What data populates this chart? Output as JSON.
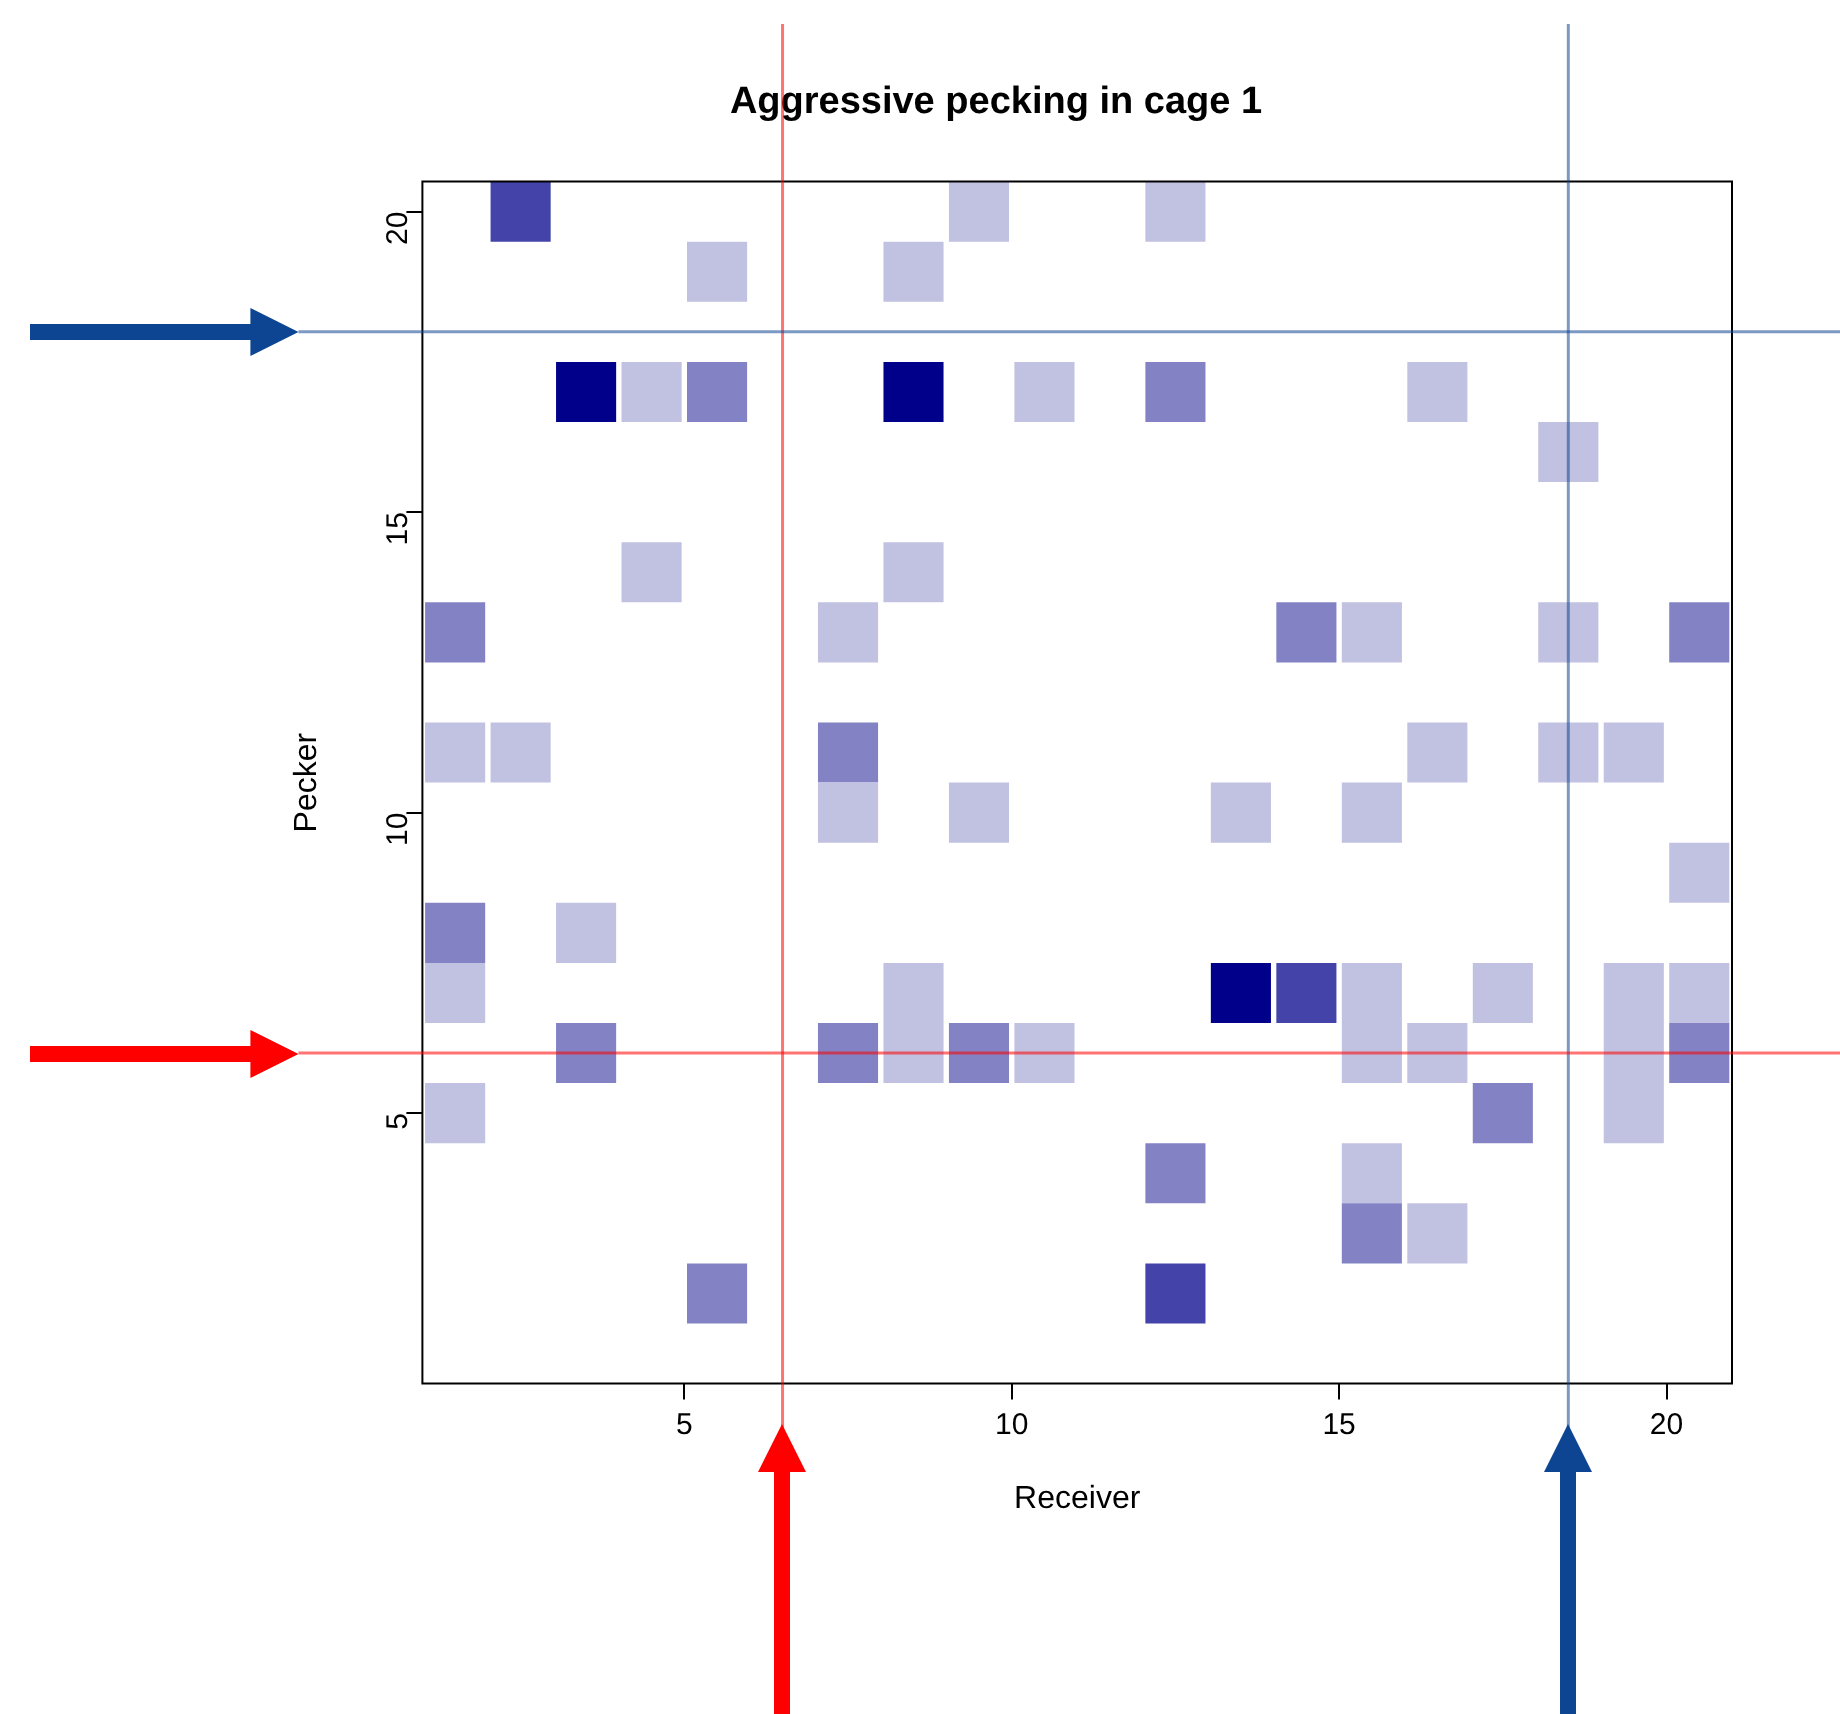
{
  "chart_data": {
    "type": "scatter",
    "title": "Aggressive pecking in cage 1",
    "xlabel": "Receiver",
    "ylabel": "Pecker",
    "marker": "square",
    "xlim": [
      1,
      21
    ],
    "xticks": [
      5,
      10,
      15,
      20
    ],
    "ylim": [
      0.5,
      20.5
    ],
    "yticks": [
      5,
      10,
      15,
      20
    ],
    "series": [
      {
        "x": [
          2.5,
          9.5,
          12.5,
          5.5,
          8.5,
          3.5,
          4.5,
          5.5,
          8.5,
          10.5,
          12.5,
          16.5,
          18.5,
          4.5,
          8.5,
          1.5,
          7.5,
          14.5,
          15.5,
          18.5,
          20.5,
          1.5,
          2.5,
          7.5,
          16.5,
          18.5,
          19.5,
          7.5,
          9.5,
          13.5,
          15.5,
          20.5,
          1.5,
          3.5,
          1.5,
          8.5,
          13.5,
          14.5,
          15.5,
          17.5,
          19.5,
          20.5,
          3.5,
          7.5,
          8.5,
          9.5,
          10.5,
          15.5,
          16.5,
          19.5,
          20.5,
          1.5,
          17.5,
          19.5,
          12.5,
          15.5,
          15.5,
          16.5,
          5.5,
          12.5
        ],
        "values": [
          20,
          20,
          20,
          19,
          19,
          17,
          17,
          17,
          17,
          17,
          17,
          17,
          16,
          14,
          14,
          13,
          13,
          13,
          13,
          13,
          13,
          11,
          11,
          11,
          11,
          11,
          11,
          10,
          10,
          10,
          10,
          9,
          8,
          8,
          7,
          7,
          7,
          7,
          7,
          7,
          7,
          7,
          6,
          6,
          6,
          6,
          6,
          6,
          6,
          6,
          6,
          5,
          5,
          5,
          4,
          4,
          3,
          3,
          2,
          2
        ],
        "colors": [
          "#4343a9",
          "#c1c1e1",
          "#c1c1e1",
          "#c1c1e1",
          "#c1c1e1",
          "#00008b",
          "#c1c1e1",
          "#8282c4",
          "#00008b",
          "#c1c1e1",
          "#8282c4",
          "#c1c1e1",
          "#c1c1e1",
          "#c1c1e1",
          "#c1c1e1",
          "#8282c4",
          "#c1c1e1",
          "#8282c4",
          "#c1c1e1",
          "#c1c1e1",
          "#8282c4",
          "#c1c1e1",
          "#c1c1e1",
          "#8282c4",
          "#c1c1e1",
          "#c1c1e1",
          "#c1c1e1",
          "#c1c1e1",
          "#c1c1e1",
          "#c1c1e1",
          "#c1c1e1",
          "#c1c1e1",
          "#8282c4",
          "#c1c1e1",
          "#c1c1e1",
          "#c1c1e1",
          "#00008b",
          "#4343a9",
          "#c1c1e1",
          "#c1c1e1",
          "#c1c1e1",
          "#c1c1e1",
          "#8282c4",
          "#8282c4",
          "#c1c1e1",
          "#8282c4",
          "#c1c1e1",
          "#c1c1e1",
          "#c1c1e1",
          "#c1c1e1",
          "#8282c4",
          "#c1c1e1",
          "#8282c4",
          "#c1c1e1",
          "#8282c4",
          "#c1c1e1",
          "#8282c4",
          "#c1c1e1",
          "#8282c4",
          "#4343a9"
        ]
      }
    ],
    "ref_lines": [
      {
        "axis": "x",
        "value": 6.5,
        "color": "#ff0000"
      },
      {
        "axis": "x",
        "value": 18.5,
        "color": "#0d4592"
      },
      {
        "axis": "y",
        "value": 18,
        "color": "#0d4592"
      },
      {
        "axis": "y",
        "value": 6,
        "color": "#ff0000"
      }
    ]
  }
}
